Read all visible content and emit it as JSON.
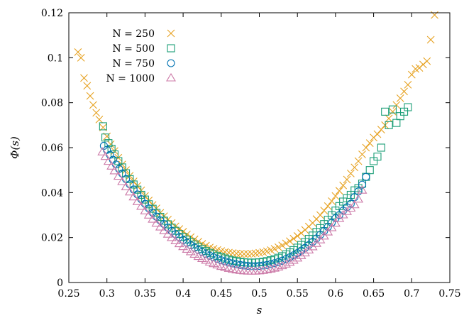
{
  "chart_data": {
    "type": "scatter",
    "title": "",
    "xlabel": "s",
    "ylabel": "Φ(s)",
    "xlim": [
      0.25,
      0.75
    ],
    "ylim": [
      0,
      0.12
    ],
    "xticks": [
      "0.25",
      "0.3",
      "0.35",
      "0.4",
      "0.45",
      "0.5",
      "0.55",
      "0.6",
      "0.65",
      "0.7",
      "0.75"
    ],
    "yticks": [
      "0",
      "0.02",
      "0.04",
      "0.06",
      "0.08",
      "0.1",
      "0.12"
    ],
    "grid": false,
    "legend_position": "top-left",
    "series": [
      {
        "name": "N = 250",
        "marker": "cross",
        "color": "#E6A11F",
        "x": [
          0.262,
          0.266,
          0.27,
          0.274,
          0.278,
          0.282,
          0.286,
          0.29,
          0.295,
          0.3,
          0.305,
          0.31,
          0.315,
          0.32,
          0.325,
          0.33,
          0.335,
          0.34,
          0.345,
          0.35,
          0.355,
          0.36,
          0.365,
          0.37,
          0.375,
          0.38,
          0.385,
          0.39,
          0.395,
          0.4,
          0.405,
          0.41,
          0.415,
          0.42,
          0.425,
          0.43,
          0.435,
          0.44,
          0.445,
          0.45,
          0.455,
          0.46,
          0.465,
          0.47,
          0.475,
          0.48,
          0.485,
          0.49,
          0.495,
          0.5,
          0.505,
          0.51,
          0.515,
          0.52,
          0.525,
          0.53,
          0.535,
          0.54,
          0.545,
          0.55,
          0.555,
          0.56,
          0.565,
          0.57,
          0.575,
          0.58,
          0.585,
          0.59,
          0.595,
          0.6,
          0.605,
          0.61,
          0.615,
          0.62,
          0.625,
          0.63,
          0.635,
          0.64,
          0.645,
          0.65,
          0.655,
          0.66,
          0.665,
          0.67,
          0.675,
          0.68,
          0.685,
          0.69,
          0.695,
          0.7,
          0.705,
          0.71,
          0.715,
          0.72,
          0.725,
          0.73
        ],
        "y": [
          0.1025,
          0.1,
          0.091,
          0.0875,
          0.083,
          0.079,
          0.0755,
          0.0725,
          0.069,
          0.065,
          0.0615,
          0.0585,
          0.0555,
          0.0525,
          0.05,
          0.0475,
          0.045,
          0.043,
          0.041,
          0.0385,
          0.0365,
          0.0345,
          0.033,
          0.031,
          0.0295,
          0.028,
          0.0265,
          0.025,
          0.0238,
          0.0226,
          0.0214,
          0.0202,
          0.0192,
          0.0182,
          0.0172,
          0.0164,
          0.0156,
          0.015,
          0.0145,
          0.014,
          0.0136,
          0.0133,
          0.0131,
          0.0129,
          0.0128,
          0.0127,
          0.0127,
          0.0128,
          0.013,
          0.0132,
          0.0135,
          0.0139,
          0.0144,
          0.015,
          0.0157,
          0.0165,
          0.0174,
          0.0184,
          0.0195,
          0.0207,
          0.022,
          0.0234,
          0.0249,
          0.0265,
          0.0282,
          0.03,
          0.032,
          0.034,
          0.0362,
          0.0385,
          0.0408,
          0.0432,
          0.0458,
          0.0485,
          0.0512,
          0.054,
          0.057,
          0.06,
          0.062,
          0.0645,
          0.066,
          0.068,
          0.07,
          0.073,
          0.076,
          0.079,
          0.082,
          0.085,
          0.088,
          0.0925,
          0.095,
          0.0955,
          0.097,
          0.0985,
          0.108,
          0.119
        ]
      },
      {
        "name": "N = 500",
        "marker": "square",
        "color": "#1B9E77",
        "x": [
          0.295,
          0.298,
          0.302,
          0.306,
          0.31,
          0.315,
          0.32,
          0.325,
          0.33,
          0.335,
          0.34,
          0.345,
          0.35,
          0.355,
          0.36,
          0.365,
          0.37,
          0.375,
          0.38,
          0.385,
          0.39,
          0.395,
          0.4,
          0.405,
          0.41,
          0.415,
          0.42,
          0.425,
          0.43,
          0.435,
          0.44,
          0.445,
          0.45,
          0.455,
          0.46,
          0.465,
          0.47,
          0.475,
          0.48,
          0.485,
          0.49,
          0.495,
          0.5,
          0.505,
          0.51,
          0.515,
          0.52,
          0.525,
          0.53,
          0.535,
          0.54,
          0.545,
          0.55,
          0.555,
          0.56,
          0.565,
          0.57,
          0.575,
          0.58,
          0.585,
          0.59,
          0.595,
          0.6,
          0.605,
          0.61,
          0.615,
          0.62,
          0.625,
          0.63,
          0.635,
          0.64,
          0.645,
          0.65,
          0.655,
          0.66,
          0.665,
          0.67,
          0.675,
          0.68,
          0.685,
          0.69,
          0.695
        ],
        "y": [
          0.0695,
          0.0645,
          0.062,
          0.0595,
          0.057,
          0.054,
          0.0512,
          0.0486,
          0.046,
          0.0436,
          0.0413,
          0.039,
          0.0369,
          0.0348,
          0.0328,
          0.031,
          0.0292,
          0.0275,
          0.0259,
          0.0244,
          0.023,
          0.0216,
          0.0203,
          0.0191,
          0.018,
          0.0169,
          0.0159,
          0.0149,
          0.014,
          0.0132,
          0.0125,
          0.0118,
          0.0112,
          0.0107,
          0.0102,
          0.0098,
          0.0095,
          0.0092,
          0.009,
          0.0089,
          0.0088,
          0.0089,
          0.009,
          0.0092,
          0.0095,
          0.0099,
          0.0104,
          0.011,
          0.0117,
          0.0125,
          0.0134,
          0.0144,
          0.0155,
          0.0167,
          0.018,
          0.0194,
          0.0209,
          0.0225,
          0.0242,
          0.026,
          0.0279,
          0.0299,
          0.032,
          0.034,
          0.036,
          0.0375,
          0.039,
          0.041,
          0.042,
          0.044,
          0.047,
          0.05,
          0.054,
          0.056,
          0.06,
          0.076,
          0.07,
          0.077,
          0.071,
          0.074,
          0.076,
          0.078
        ]
      },
      {
        "name": "N = 750",
        "marker": "circle",
        "color": "#0072B2",
        "x": [
          0.296,
          0.3,
          0.304,
          0.308,
          0.312,
          0.316,
          0.32,
          0.325,
          0.33,
          0.335,
          0.34,
          0.345,
          0.35,
          0.355,
          0.36,
          0.365,
          0.37,
          0.375,
          0.38,
          0.385,
          0.39,
          0.395,
          0.4,
          0.405,
          0.41,
          0.415,
          0.42,
          0.425,
          0.43,
          0.435,
          0.44,
          0.445,
          0.45,
          0.455,
          0.46,
          0.465,
          0.47,
          0.475,
          0.48,
          0.485,
          0.49,
          0.495,
          0.5,
          0.505,
          0.51,
          0.515,
          0.52,
          0.525,
          0.53,
          0.535,
          0.54,
          0.545,
          0.55,
          0.555,
          0.56,
          0.565,
          0.57,
          0.575,
          0.58,
          0.585,
          0.59,
          0.595,
          0.6,
          0.605,
          0.61,
          0.615,
          0.62,
          0.625,
          0.63,
          0.635,
          0.64
        ],
        "y": [
          0.0608,
          0.059,
          0.0568,
          0.0546,
          0.0525,
          0.0505,
          0.0485,
          0.046,
          0.0437,
          0.0414,
          0.0392,
          0.0371,
          0.035,
          0.033,
          0.0311,
          0.0293,
          0.0276,
          0.026,
          0.0244,
          0.0229,
          0.0215,
          0.0202,
          0.0189,
          0.0177,
          0.0166,
          0.0155,
          0.0145,
          0.0136,
          0.0127,
          0.0119,
          0.0112,
          0.0105,
          0.0099,
          0.0094,
          0.0089,
          0.0085,
          0.0081,
          0.0078,
          0.0076,
          0.0074,
          0.0073,
          0.0073,
          0.0074,
          0.0076,
          0.0078,
          0.0082,
          0.0086,
          0.0091,
          0.0097,
          0.0104,
          0.0112,
          0.0121,
          0.0131,
          0.0142,
          0.0154,
          0.0167,
          0.0181,
          0.0196,
          0.0212,
          0.0229,
          0.0247,
          0.0266,
          0.0286,
          0.03,
          0.032,
          0.0335,
          0.035,
          0.038,
          0.0405,
          0.0435,
          0.047
        ]
      },
      {
        "name": "N = 1000",
        "marker": "triangle",
        "color": "#CC79A7",
        "x": [
          0.294,
          0.298,
          0.302,
          0.306,
          0.31,
          0.315,
          0.32,
          0.325,
          0.33,
          0.335,
          0.34,
          0.345,
          0.35,
          0.355,
          0.36,
          0.365,
          0.37,
          0.375,
          0.38,
          0.385,
          0.39,
          0.395,
          0.4,
          0.405,
          0.41,
          0.415,
          0.42,
          0.425,
          0.43,
          0.435,
          0.44,
          0.445,
          0.45,
          0.455,
          0.46,
          0.465,
          0.47,
          0.475,
          0.48,
          0.485,
          0.49,
          0.495,
          0.5,
          0.505,
          0.51,
          0.515,
          0.52,
          0.525,
          0.53,
          0.535,
          0.54,
          0.545,
          0.55,
          0.555,
          0.56,
          0.565,
          0.57,
          0.575,
          0.58,
          0.585,
          0.59,
          0.595,
          0.6,
          0.605,
          0.61,
          0.615,
          0.62,
          0.625,
          0.63,
          0.635
        ],
        "y": [
          0.058,
          0.056,
          0.0538,
          0.0517,
          0.0496,
          0.0472,
          0.0448,
          0.0425,
          0.0402,
          0.038,
          0.0359,
          0.0338,
          0.0318,
          0.0299,
          0.0281,
          0.0263,
          0.0246,
          0.023,
          0.0214,
          0.0199,
          0.0185,
          0.0172,
          0.0159,
          0.0147,
          0.0136,
          0.0125,
          0.0115,
          0.0106,
          0.0098,
          0.009,
          0.0083,
          0.0077,
          0.0071,
          0.0066,
          0.0062,
          0.0058,
          0.0055,
          0.0053,
          0.0051,
          0.005,
          0.005,
          0.005,
          0.0051,
          0.0053,
          0.0056,
          0.0059,
          0.0063,
          0.0068,
          0.0074,
          0.0081,
          0.0089,
          0.0098,
          0.0108,
          0.0119,
          0.0131,
          0.0144,
          0.0158,
          0.0173,
          0.0189,
          0.0206,
          0.0224,
          0.0243,
          0.0263,
          0.0284,
          0.03,
          0.0315,
          0.033,
          0.0345,
          0.037,
          0.041
        ]
      }
    ]
  }
}
